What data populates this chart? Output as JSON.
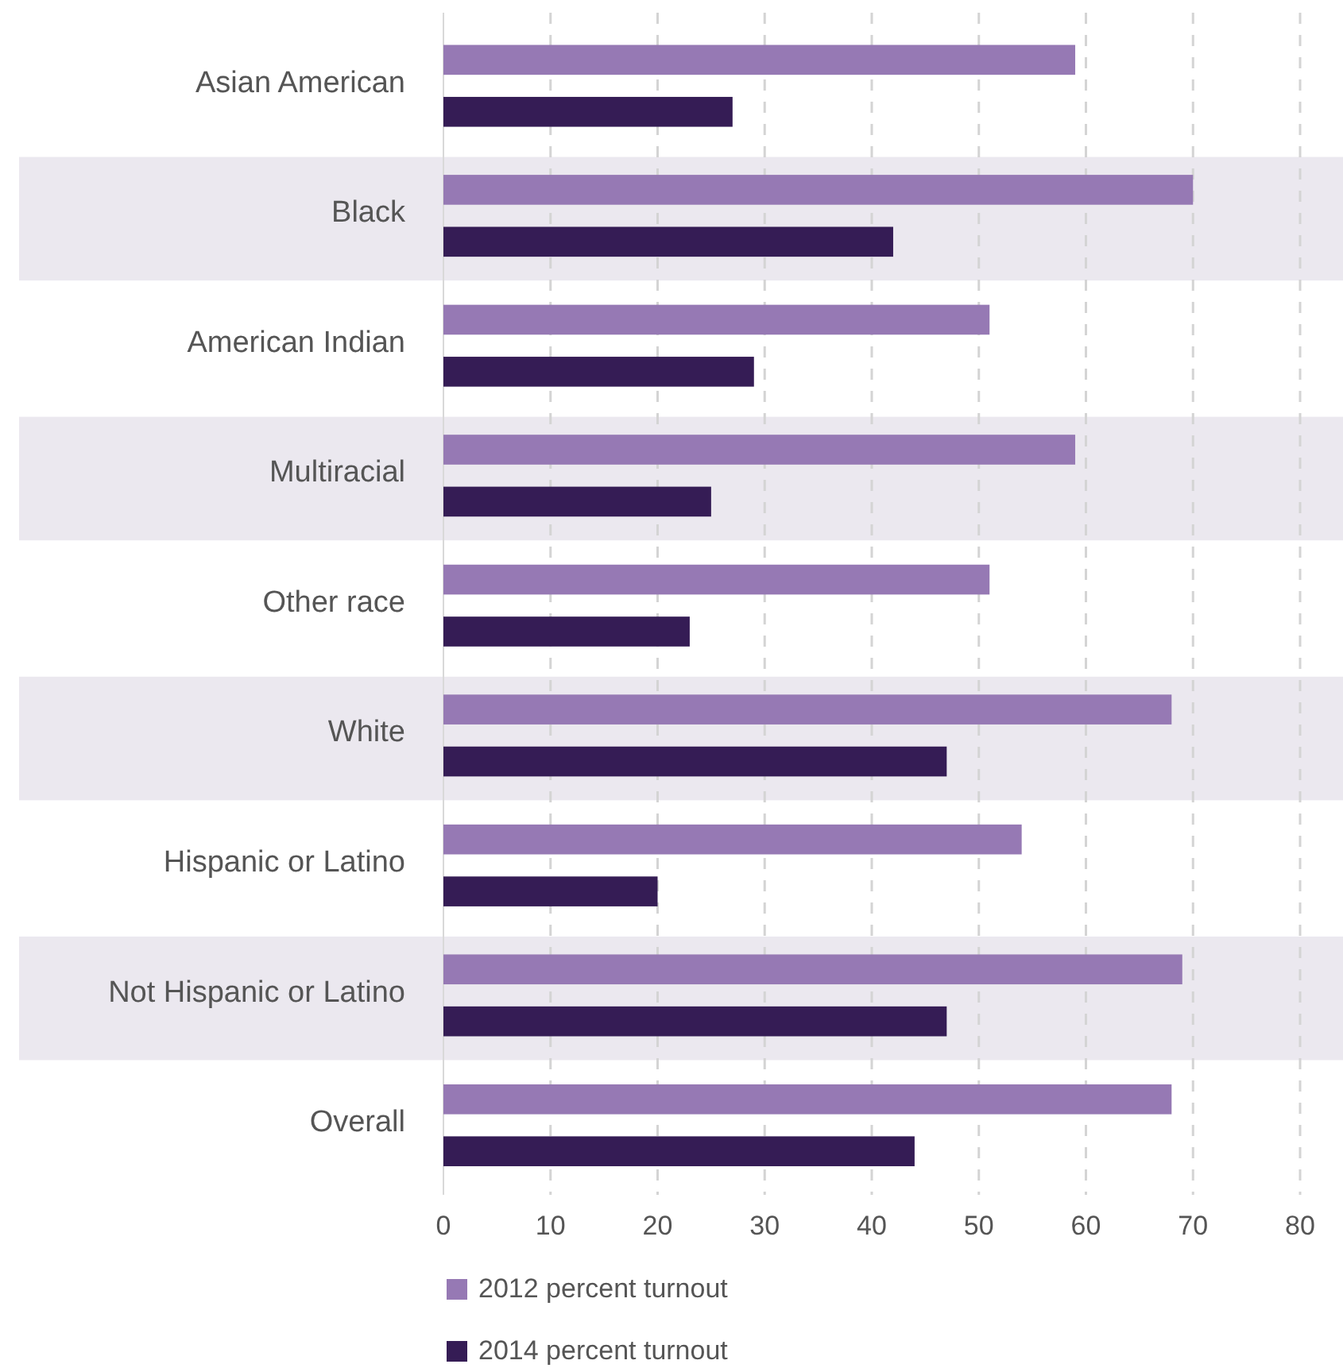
{
  "chart_data": {
    "type": "bar",
    "orientation": "horizontal",
    "categories": [
      "Asian American",
      "Black",
      "American Indian",
      "Multiracial",
      "Other race",
      "White",
      "Hispanic or Latino",
      "Not Hispanic or Latino",
      "Overall"
    ],
    "series": [
      {
        "name": "2012 percent turnout",
        "color": "#9679b4",
        "values": [
          59,
          70,
          51,
          59,
          51,
          68,
          54,
          69,
          68
        ]
      },
      {
        "name": "2014 percent turnout",
        "color": "#351c55",
        "values": [
          27,
          42,
          29,
          25,
          23,
          47,
          20,
          47,
          44
        ]
      }
    ],
    "bands": [
      {
        "axis": "y",
        "from": "Black",
        "to": "Black",
        "color": "#ebe8ef"
      },
      {
        "axis": "y",
        "from": "Multiracial",
        "to": "Multiracial",
        "color": "#ebe8ef"
      },
      {
        "axis": "y",
        "from": "White",
        "to": "White",
        "color": "#ebe8ef"
      },
      {
        "axis": "y",
        "from": "Not Hispanic or Latino",
        "to": "Not Hispanic or Latino",
        "color": "#ebe8ef"
      }
    ],
    "xlim": [
      0,
      80
    ],
    "xticks": [
      0,
      10,
      20,
      30,
      40,
      50,
      60,
      70,
      80
    ],
    "grid": "x",
    "legend": "bottom"
  }
}
